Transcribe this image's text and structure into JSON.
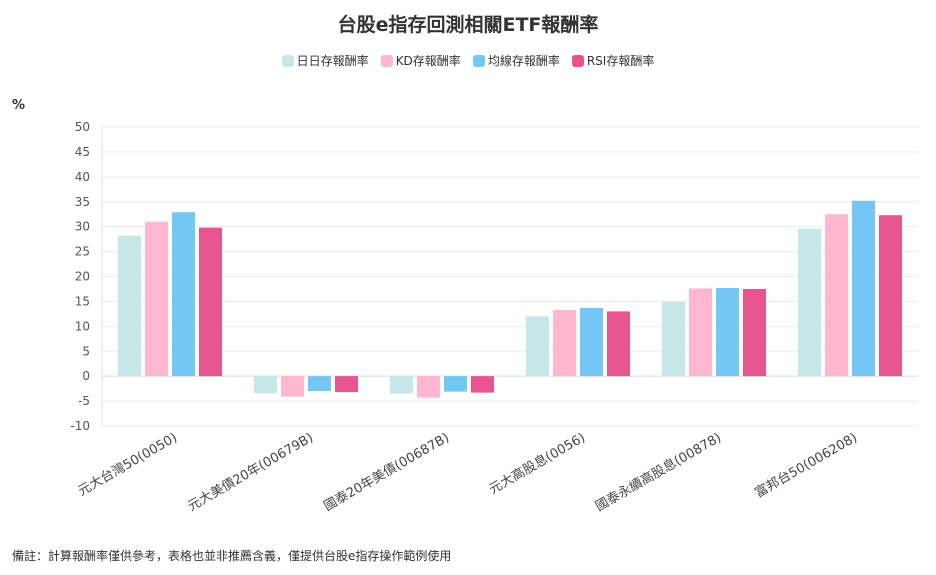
{
  "title": "台股e指存回測相關ETF報酬率",
  "unit_label": "%",
  "note": "備註：計算報酬率僅供參考，表格也並非推薦含義，僅提供台股e指存操作範例使用",
  "chart_data": {
    "type": "bar",
    "title": "台股e指存回測相關ETF報酬率",
    "ylabel": "%",
    "ylim": [
      -10,
      50
    ],
    "yticks": [
      50,
      45,
      40,
      35,
      30,
      25,
      20,
      15,
      10,
      5,
      0,
      -5,
      -10
    ],
    "grid": true,
    "legend_position": "top-center",
    "categories": [
      "元大台灣50(0050)",
      "元大美債20年(00679B)",
      "國泰20年美債(00687B)",
      "元大高股息(0056)",
      "國泰永續高股息(00878)",
      "富邦台50(006208)"
    ],
    "series": [
      {
        "name": "日日存報酬率",
        "color": "#c6e7e7",
        "values": [
          28.2,
          -3.4,
          -3.5,
          12.0,
          14.9,
          29.6
        ]
      },
      {
        "name": "KD存報酬率",
        "color": "#ffb6cf",
        "values": [
          31.0,
          -4.1,
          -4.3,
          13.3,
          17.6,
          32.5
        ]
      },
      {
        "name": "均線存報酬率",
        "color": "#73c7f2",
        "values": [
          32.9,
          -3.0,
          -3.1,
          13.7,
          17.7,
          35.2
        ]
      },
      {
        "name": "RSI存報酬率",
        "color": "#e8548f",
        "values": [
          29.8,
          -3.2,
          -3.3,
          13.0,
          17.5,
          32.3
        ]
      }
    ]
  }
}
